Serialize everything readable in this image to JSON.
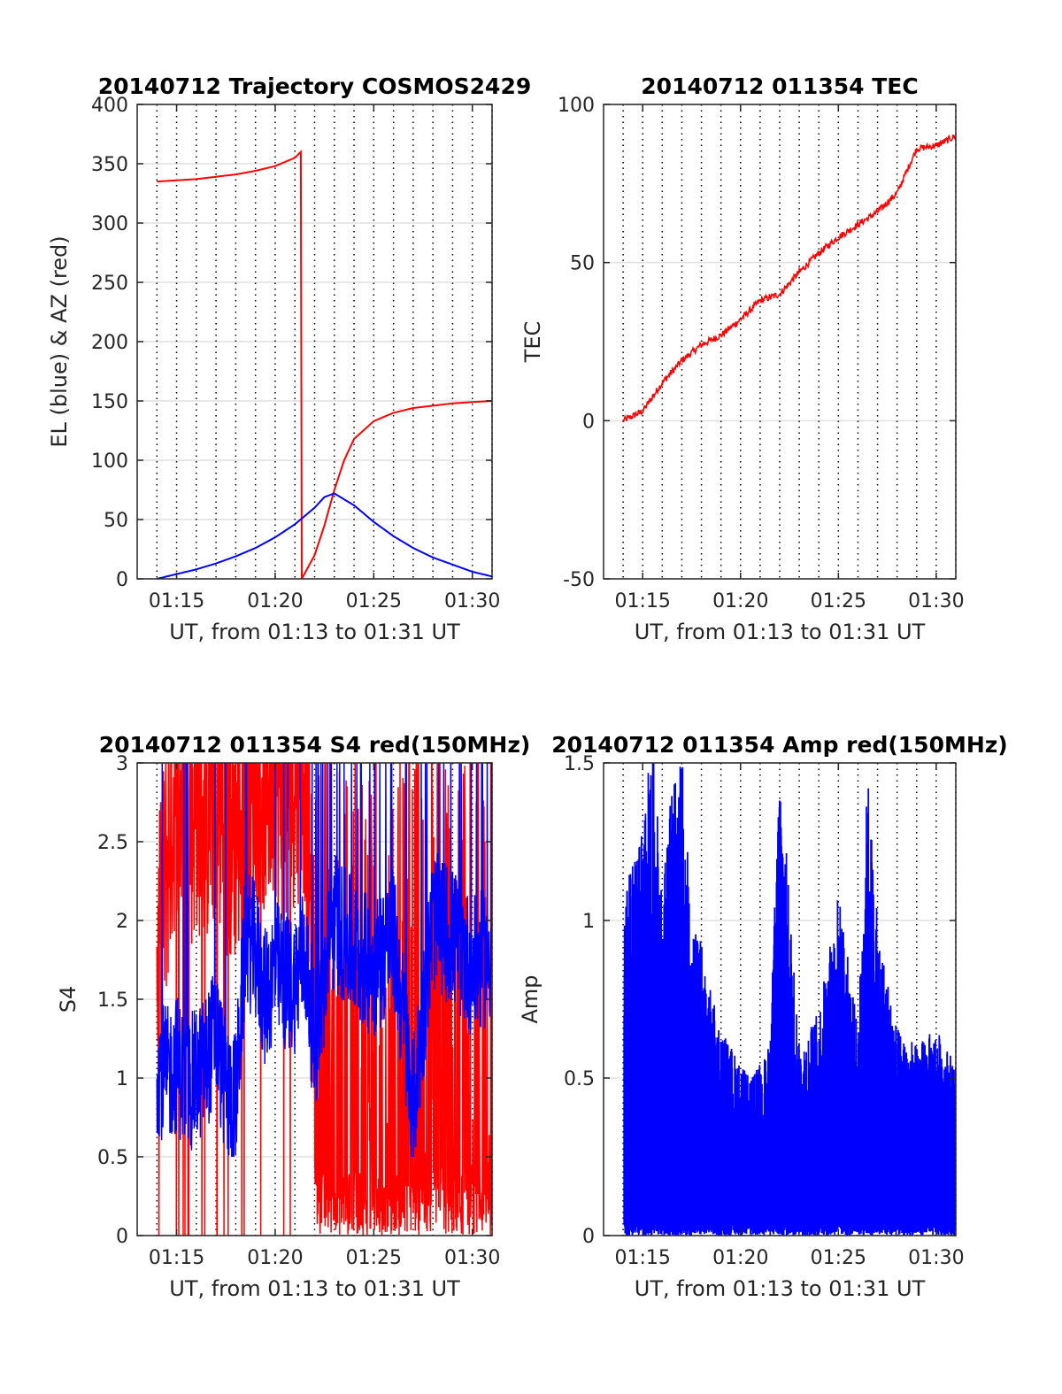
{
  "panels": [
    {
      "title": "20140712 Trajectory COSMOS2429",
      "ylabel": "EL (blue) & AZ (red)",
      "xlabel": "UT, from 01:13 to 01:31 UT",
      "yticks": [
        "0",
        "50",
        "100",
        "150",
        "200",
        "250",
        "300",
        "350",
        "400"
      ],
      "xticks": [
        "01:15",
        "01:20",
        "01:25",
        "01:30"
      ]
    },
    {
      "title": "20140712 011354 TEC",
      "ylabel": "TEC",
      "xlabel": "UT, from 01:13 to 01:31 UT",
      "yticks": [
        "-50",
        "0",
        "50",
        "100"
      ],
      "xticks": [
        "01:15",
        "01:20",
        "01:25",
        "01:30"
      ]
    },
    {
      "title": "20140712 011354 S4 red(150MHz)",
      "ylabel": "S4",
      "xlabel": "UT, from 01:13 to 01:31 UT",
      "yticks": [
        "0",
        "0.5",
        "1",
        "1.5",
        "2",
        "2.5",
        "3"
      ],
      "xticks": [
        "01:15",
        "01:20",
        "01:25",
        "01:30"
      ]
    },
    {
      "title": "20140712 011354 Amp red(150MHz)",
      "ylabel": "Amp",
      "xlabel": "UT, from 01:13 to 01:31 UT",
      "yticks": [
        "0",
        "0.5",
        "1",
        "1.5"
      ],
      "xticks": [
        "01:15",
        "01:20",
        "01:25",
        "01:30"
      ]
    }
  ],
  "colors": {
    "red": "#ff0000",
    "blue": "#0000ff",
    "grid": "#e0e0e0",
    "axis": "#262626"
  },
  "chart_data": [
    {
      "type": "line",
      "title": "20140712 Trajectory COSMOS2429",
      "xlabel": "UT, from 01:13 to 01:31 UT",
      "ylabel": "EL (blue) & AZ (red)",
      "xlim": [
        "01:13",
        "01:31"
      ],
      "ylim": [
        0,
        400
      ],
      "grid": true,
      "series": [
        {
          "name": "AZ (red)",
          "color": "#ff0000",
          "x": [
            "01:14",
            "01:15",
            "01:16",
            "01:17",
            "01:18",
            "01:19",
            "01:20",
            "01:21",
            "01:21.3",
            "01:21.35",
            "01:22",
            "01:22.5",
            "01:23",
            "01:23.5",
            "01:24",
            "01:25",
            "01:26",
            "01:27",
            "01:28",
            "01:29",
            "01:30",
            "01:31"
          ],
          "values": [
            335,
            336,
            337,
            339,
            341,
            344,
            348,
            355,
            360,
            0,
            20,
            45,
            75,
            100,
            118,
            133,
            140,
            144,
            146,
            148,
            149,
            150
          ]
        },
        {
          "name": "EL (blue)",
          "color": "#0000ff",
          "x": [
            "01:14",
            "01:15",
            "01:16",
            "01:17",
            "01:18",
            "01:19",
            "01:20",
            "01:21",
            "01:22",
            "01:22.5",
            "01:23",
            "01:24",
            "01:25",
            "01:26",
            "01:27",
            "01:28",
            "01:29",
            "01:30",
            "01:31"
          ],
          "values": [
            0,
            4,
            8,
            13,
            19,
            26,
            35,
            46,
            60,
            69,
            72,
            62,
            48,
            36,
            26,
            18,
            12,
            6,
            2
          ]
        }
      ]
    },
    {
      "type": "line",
      "title": "20140712 011354 TEC",
      "xlabel": "UT, from 01:13 to 01:31 UT",
      "ylabel": "TEC",
      "xlim": [
        "01:13",
        "01:31"
      ],
      "ylim": [
        -50,
        100
      ],
      "grid": true,
      "series": [
        {
          "name": "TEC",
          "color": "#ff0000",
          "x": [
            "01:14",
            "01:15",
            "01:16",
            "01:17",
            "01:18",
            "01:19",
            "01:20",
            "01:21",
            "01:22",
            "01:23",
            "01:24",
            "01:25",
            "01:26",
            "01:27",
            "01:28",
            "01:29",
            "01:30",
            "01:31"
          ],
          "values": [
            0,
            3,
            12,
            19,
            24,
            27,
            32,
            38,
            40,
            47,
            53,
            58,
            62,
            66,
            72,
            86,
            87,
            90
          ]
        }
      ]
    },
    {
      "type": "line",
      "title": "20140712 011354 S4 red(150MHz)",
      "xlabel": "UT, from 01:13 to 01:31 UT",
      "ylabel": "S4",
      "xlim": [
        "01:13",
        "01:31"
      ],
      "ylim": [
        0,
        3
      ],
      "grid": true,
      "series": [
        {
          "name": "S4 red",
          "color": "#ff0000",
          "x": [
            "01:14",
            "01:14.5",
            "01:15",
            "01:15.5",
            "01:16",
            "01:16.5",
            "01:17",
            "01:17.5",
            "01:18",
            "01:18.5",
            "01:19",
            "01:19.5",
            "01:20",
            "01:20.5",
            "01:21",
            "01:21.5",
            "01:22",
            "01:23",
            "01:24",
            "01:25",
            "01:26",
            "01:27",
            "01:28",
            "01:29",
            "01:30",
            "01:31"
          ],
          "values": [
            1.6,
            2.4,
            2.9,
            2.6,
            2.8,
            2.7,
            2.9,
            2.5,
            2.6,
            2.7,
            3.0,
            2.9,
            3.0,
            2.8,
            3.0,
            3.0,
            1.5,
            1.5,
            1.5,
            1.5,
            1.5,
            1.5,
            1.5,
            1.5,
            1.5,
            1.6
          ]
        },
        {
          "name": "S4 blue",
          "color": "#0000ff",
          "x": [
            "01:14",
            "01:14.5",
            "01:15",
            "01:15.5",
            "01:16",
            "01:16.5",
            "01:17",
            "01:17.5",
            "01:18",
            "01:18.5",
            "01:19",
            "01:19.5",
            "01:20",
            "01:20.5",
            "01:21",
            "01:21.5",
            "01:22",
            "01:23",
            "01:24",
            "01:25",
            "01:26",
            "01:27",
            "01:28",
            "01:29",
            "01:30",
            "01:31"
          ],
          "values": [
            1.1,
            1.0,
            1.1,
            0.95,
            1.0,
            1.1,
            1.3,
            0.9,
            0.85,
            1.9,
            1.8,
            1.5,
            1.7,
            1.6,
            1.6,
            1.8,
            1.2,
            2.0,
            1.8,
            1.7,
            1.9,
            0.8,
            2.0,
            1.9,
            1.7,
            1.8
          ]
        }
      ]
    },
    {
      "type": "line",
      "title": "20140712 011354 Amp red(150MHz)",
      "xlabel": "UT, from 01:13 to 01:31 UT",
      "ylabel": "Amp",
      "xlim": [
        "01:13",
        "01:31"
      ],
      "ylim": [
        0,
        1.5
      ],
      "grid": true,
      "series": [
        {
          "name": "Amp",
          "color": "#0000ff",
          "x": [
            "01:14",
            "01:14.5",
            "01:15",
            "01:15.5",
            "01:16",
            "01:16.5",
            "01:17",
            "01:17.5",
            "01:18",
            "01:18.5",
            "01:19",
            "01:19.5",
            "01:20",
            "01:20.5",
            "01:21",
            "01:21.5",
            "01:22",
            "01:23",
            "01:24",
            "01:25",
            "01:26",
            "01:26.5",
            "01:27",
            "01:28",
            "01:29",
            "01:30",
            "01:31"
          ],
          "values": [
            0.95,
            1.1,
            1.2,
            1.45,
            1.0,
            1.3,
            1.4,
            0.9,
            0.85,
            0.7,
            0.6,
            0.55,
            0.5,
            0.45,
            0.5,
            0.55,
            1.4,
            0.55,
            0.65,
            1.0,
            0.6,
            1.35,
            0.9,
            0.6,
            0.55,
            0.6,
            0.5
          ]
        }
      ]
    }
  ]
}
